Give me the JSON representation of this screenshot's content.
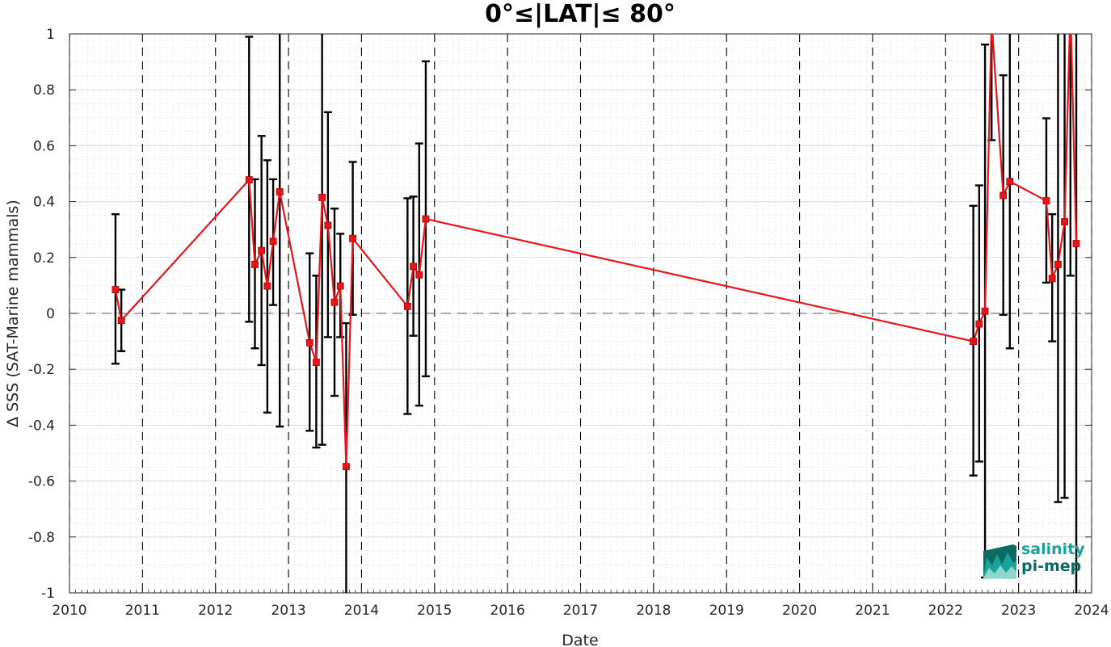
{
  "colors": {
    "series": "#e8141a",
    "errorbar": "#000000",
    "logo_teal": "#1aa39a",
    "logo_dark": "#0b6b62"
  },
  "logo": {
    "line1": "salinity",
    "line2": "pi-mep"
  },
  "chart_data": {
    "type": "line",
    "title": "0°≤|LAT|≤ 80°",
    "xlabel": "Date",
    "ylabel": "Δ SSS (SAT-Marine mammals)",
    "xlim": [
      2010,
      2024
    ],
    "ylim": [
      -1,
      1
    ],
    "x_ticks": [
      "2010",
      "2011",
      "2012",
      "2013",
      "2014",
      "2015",
      "2016",
      "2017",
      "2018",
      "2019",
      "2020",
      "2021",
      "2022",
      "2023",
      "2024"
    ],
    "y_ticks": [
      "-1",
      "-0.8",
      "-0.6",
      "-0.4",
      "-0.2",
      "0",
      "0.2",
      "0.4",
      "0.6",
      "0.8",
      "1"
    ],
    "grid": true,
    "year_dividers": "dashed vertical lines at each year",
    "zero_line": "dashed horizontal line at 0",
    "series": [
      {
        "marker": "square",
        "x": [
          2010.63,
          2010.71,
          2012.46,
          2012.54,
          2012.63,
          2012.71,
          2012.79,
          2012.88,
          2013.29,
          2013.38,
          2013.46,
          2013.54,
          2013.63,
          2013.71,
          2013.79,
          2013.88,
          2014.63,
          2014.71,
          2014.79,
          2014.88,
          2022.38,
          2022.46,
          2022.54,
          2022.63,
          2022.79,
          2022.88,
          2023.38,
          2023.46,
          2023.54,
          2023.63,
          2023.71,
          2023.79
        ],
        "y": [
          0.085,
          -0.025,
          0.478,
          0.175,
          0.225,
          0.098,
          0.258,
          0.435,
          -0.105,
          -0.175,
          0.415,
          0.315,
          0.04,
          0.098,
          -0.548,
          0.268,
          0.025,
          0.168,
          0.138,
          0.338,
          -0.1,
          -0.038,
          0.008,
          1.05,
          0.422,
          0.472,
          0.403,
          0.125,
          0.175,
          0.328,
          1.1,
          0.25
        ],
        "err_low": [
          -0.18,
          -0.135,
          -0.03,
          -0.125,
          -0.185,
          -0.355,
          0.03,
          -0.405,
          -0.42,
          -0.48,
          -0.47,
          -0.085,
          -0.295,
          -0.085,
          -1.05,
          -0.005,
          -0.36,
          -0.08,
          -0.33,
          -0.225,
          -0.58,
          -0.53,
          -0.945,
          0.62,
          -0.005,
          -0.125,
          0.11,
          -0.1,
          -0.675,
          -0.66,
          0.135,
          -1.05
        ],
        "err_high": [
          0.355,
          0.085,
          0.99,
          0.48,
          0.635,
          0.548,
          0.48,
          1.05,
          0.215,
          0.135,
          1.05,
          0.72,
          0.375,
          0.285,
          -0.035,
          0.542,
          0.412,
          0.418,
          0.608,
          0.902,
          0.385,
          0.458,
          0.962,
          1.05,
          0.852,
          1.05,
          0.698,
          0.355,
          1.05,
          1.05,
          1.05,
          1.05
        ]
      }
    ]
  }
}
